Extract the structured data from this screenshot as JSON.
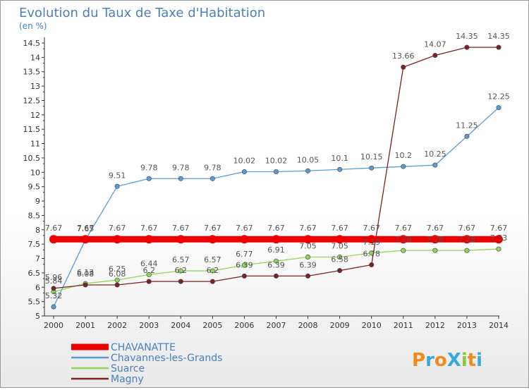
{
  "chart_data": {
    "type": "line",
    "title": "Evolution du Taux de Taxe d'Habitation",
    "subtitle": "(en %)",
    "x": [
      "2000",
      "2001",
      "2002",
      "2003",
      "2004",
      "2005",
      "2006",
      "2007",
      "2008",
      "2009",
      "2010",
      "2011",
      "2012",
      "2013",
      "2014"
    ],
    "ylim": [
      5,
      14.5
    ],
    "yticks": [
      "5",
      "5.5",
      "6",
      "6.5",
      "7",
      "7.5",
      "8",
      "8.5",
      "9",
      "9.5",
      "10",
      "10.5",
      "11",
      "11.5",
      "12",
      "12.5",
      "13",
      "13.5",
      "14",
      "14.5"
    ],
    "grid": false,
    "legend_position": "bottom-left",
    "series": [
      {
        "name": "CHAVANATTE",
        "color": "#ee0000",
        "values": [
          7.67,
          7.67,
          7.67,
          7.67,
          7.67,
          7.67,
          7.67,
          7.67,
          7.67,
          7.67,
          7.67,
          7.67,
          7.67,
          7.67,
          7.67
        ],
        "labels": [
          "7.67",
          "7.67",
          "7.67",
          "7.67",
          "7.67",
          "7.67",
          "7.67",
          "7.67",
          "7.67",
          "7.67",
          "7.67",
          "7.67",
          "7.67",
          "7.67",
          "7.67"
        ]
      },
      {
        "name": "Chavannes-les-Grands",
        "color": "#5b9bd5",
        "values": [
          5.32,
          7.65,
          9.51,
          9.78,
          9.78,
          9.78,
          10.02,
          10.02,
          10.05,
          10.1,
          10.15,
          10.2,
          10.25,
          11.25,
          12.25
        ],
        "labels": [
          "5.32",
          "7.65",
          "9.51",
          "9.78",
          "9.78",
          "9.78",
          "10.02",
          "10.02",
          "10.05",
          "10.1",
          "10.15",
          "10.2",
          "10.25",
          "11.25",
          "12.25"
        ]
      },
      {
        "name": "Suarce",
        "color": "#8ed65a",
        "values": [
          5.84,
          6.13,
          6.25,
          6.44,
          6.57,
          6.57,
          6.77,
          6.91,
          7.05,
          7.05,
          7.19,
          7.28,
          7.28,
          7.28,
          7.33
        ],
        "labels": [
          "5.84",
          "6.13",
          "6.25",
          "6.44",
          "6.57",
          "6.57",
          "6.77",
          "6.91",
          "7.05",
          "7.05",
          "7.19",
          "7.28",
          "7.28",
          "7.28",
          "7.33"
        ]
      },
      {
        "name": "Magny",
        "color": "#7b2323",
        "values": [
          5.96,
          6.08,
          6.08,
          6.2,
          6.2,
          6.2,
          6.39,
          6.39,
          6.39,
          6.58,
          6.78,
          13.66,
          14.07,
          14.35,
          14.35
        ],
        "labels": [
          "5.96",
          "6.08",
          "6.08",
          "6.2",
          "6.2",
          "6.2",
          "6.39",
          "6.39",
          "6.39",
          "6.58",
          "6.78",
          "13.66",
          "14.07",
          "14.35",
          "14.35"
        ]
      }
    ]
  },
  "brand": {
    "name": "ProXiti",
    "letters": [
      "P",
      "r",
      "o",
      "X",
      "i",
      "t",
      "i"
    ],
    "colors": [
      "#f08a1c",
      "#39a9dc",
      "#f08a1c",
      "#39a9dc",
      "#8cc63f",
      "#f08a1c",
      "#39a9dc"
    ]
  }
}
